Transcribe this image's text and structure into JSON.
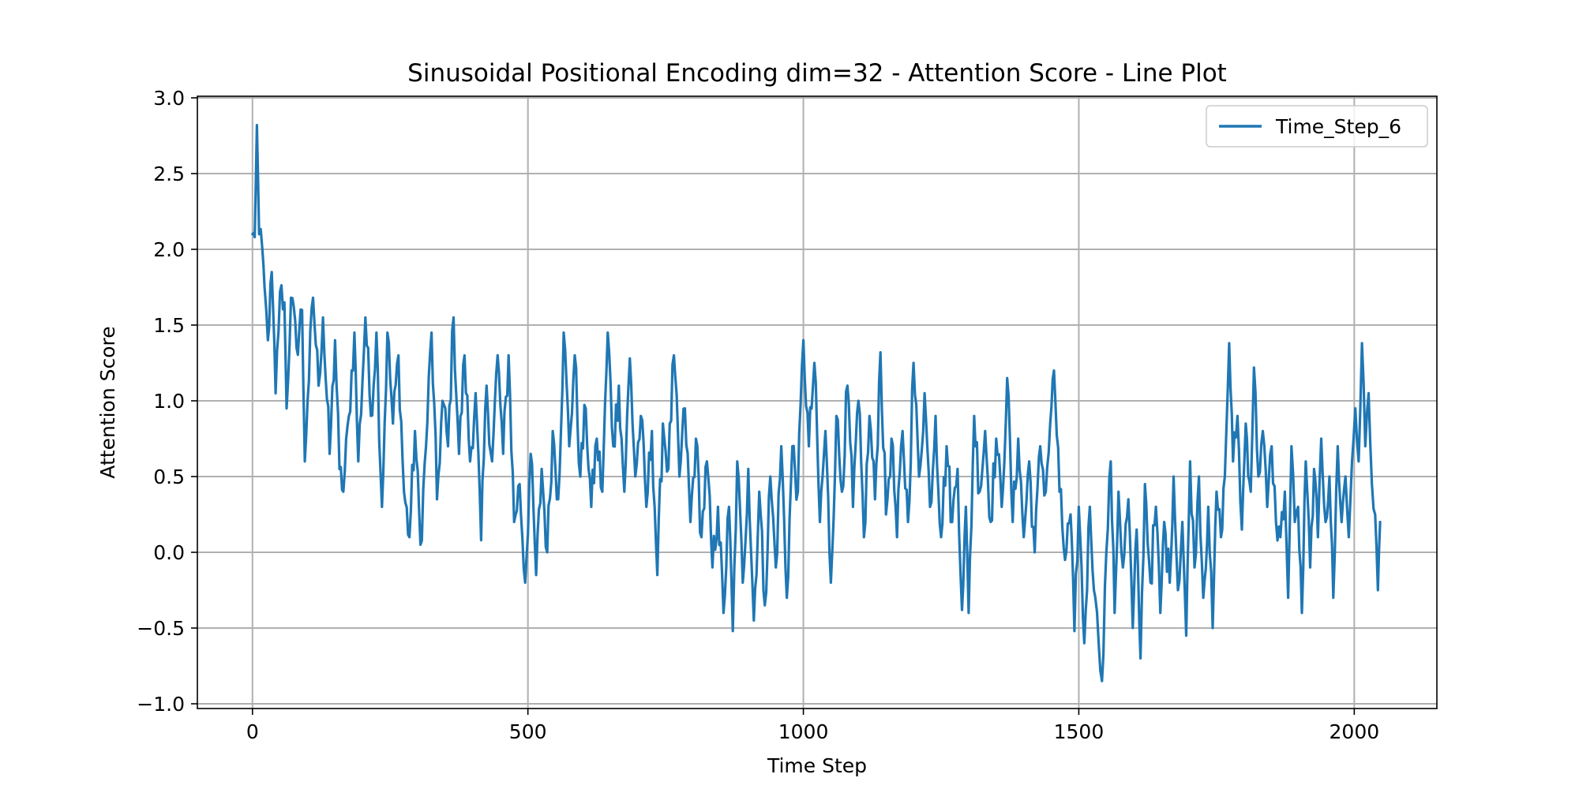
{
  "chart_data": {
    "type": "line",
    "title": "Sinusoidal Positional Encoding dim=32 - Attention Score - Line Plot",
    "xlabel": "Time Step",
    "ylabel": "Attention Score",
    "xlim": [
      -100,
      2150
    ],
    "ylim": [
      -1.0,
      3.0
    ],
    "xticks": [
      0,
      500,
      1000,
      1500,
      2000
    ],
    "xtick_labels": [
      "0",
      "500",
      "1000",
      "1500",
      "2000"
    ],
    "yticks": [
      -1.0,
      -0.5,
      0.0,
      0.5,
      1.0,
      1.5,
      2.0,
      2.5,
      3.0
    ],
    "ytick_labels": [
      "−1.0",
      "−0.5",
      "0.0",
      "0.5",
      "1.0",
      "1.5",
      "2.0",
      "2.5",
      "3.0"
    ],
    "grid": true,
    "legend_position": "top-right",
    "series": [
      {
        "name": "Time_Step_6",
        "color": "#1f77b4",
        "x_start": 0,
        "x_end": 2047,
        "anchors": [
          [
            0,
            2.1
          ],
          [
            4,
            2.08
          ],
          [
            8,
            2.82
          ],
          [
            12,
            2.1
          ],
          [
            18,
            2.0
          ],
          [
            22,
            1.75
          ],
          [
            28,
            1.4
          ],
          [
            35,
            1.85
          ],
          [
            42,
            1.05
          ],
          [
            50,
            1.72
          ],
          [
            58,
            1.65
          ],
          [
            62,
            0.95
          ],
          [
            70,
            1.68
          ],
          [
            80,
            1.35
          ],
          [
            90,
            1.6
          ],
          [
            95,
            0.6
          ],
          [
            100,
            1.0
          ],
          [
            110,
            1.68
          ],
          [
            120,
            1.1
          ],
          [
            128,
            1.55
          ],
          [
            140,
            0.65
          ],
          [
            150,
            1.4
          ],
          [
            158,
            0.55
          ],
          [
            165,
            0.4
          ],
          [
            175,
            0.9
          ],
          [
            185,
            1.45
          ],
          [
            192,
            0.6
          ],
          [
            205,
            1.55
          ],
          [
            215,
            0.9
          ],
          [
            225,
            1.45
          ],
          [
            235,
            0.3
          ],
          [
            245,
            1.45
          ],
          [
            255,
            0.85
          ],
          [
            265,
            1.3
          ],
          [
            275,
            0.4
          ],
          [
            285,
            0.1
          ],
          [
            295,
            0.8
          ],
          [
            305,
            0.05
          ],
          [
            315,
            0.7
          ],
          [
            325,
            1.45
          ],
          [
            335,
            0.35
          ],
          [
            345,
            1.0
          ],
          [
            355,
            0.7
          ],
          [
            365,
            1.55
          ],
          [
            375,
            0.65
          ],
          [
            385,
            1.3
          ],
          [
            395,
            0.6
          ],
          [
            405,
            1.05
          ],
          [
            415,
            0.08
          ],
          [
            425,
            1.1
          ],
          [
            435,
            0.6
          ],
          [
            445,
            1.3
          ],
          [
            455,
            0.65
          ],
          [
            465,
            1.3
          ],
          [
            475,
            0.2
          ],
          [
            485,
            0.45
          ],
          [
            495,
            -0.2
          ],
          [
            505,
            0.65
          ],
          [
            515,
            -0.15
          ],
          [
            525,
            0.55
          ],
          [
            535,
            0.0
          ],
          [
            545,
            0.8
          ],
          [
            555,
            0.35
          ],
          [
            565,
            1.45
          ],
          [
            575,
            0.7
          ],
          [
            585,
            1.3
          ],
          [
            595,
            0.5
          ],
          [
            605,
            0.95
          ],
          [
            615,
            0.3
          ],
          [
            625,
            0.75
          ],
          [
            635,
            0.4
          ],
          [
            645,
            1.45
          ],
          [
            655,
            0.7
          ],
          [
            665,
            1.1
          ],
          [
            675,
            0.4
          ],
          [
            685,
            1.28
          ],
          [
            695,
            0.5
          ],
          [
            705,
            0.9
          ],
          [
            715,
            0.3
          ],
          [
            725,
            0.8
          ],
          [
            735,
            -0.15
          ],
          [
            745,
            0.85
          ],
          [
            755,
            0.55
          ],
          [
            765,
            1.3
          ],
          [
            775,
            0.5
          ],
          [
            785,
            0.95
          ],
          [
            795,
            0.2
          ],
          [
            805,
            0.75
          ],
          [
            815,
            0.1
          ],
          [
            825,
            0.6
          ],
          [
            835,
            -0.1
          ],
          [
            845,
            0.3
          ],
          [
            855,
            -0.4
          ],
          [
            865,
            0.3
          ],
          [
            872,
            -0.52
          ],
          [
            880,
            0.6
          ],
          [
            890,
            -0.2
          ],
          [
            900,
            0.55
          ],
          [
            910,
            -0.45
          ],
          [
            920,
            0.4
          ],
          [
            930,
            -0.35
          ],
          [
            940,
            0.5
          ],
          [
            950,
            -0.1
          ],
          [
            960,
            0.7
          ],
          [
            970,
            -0.3
          ],
          [
            980,
            0.7
          ],
          [
            990,
            0.4
          ],
          [
            1000,
            1.4
          ],
          [
            1010,
            0.7
          ],
          [
            1020,
            1.25
          ],
          [
            1030,
            0.2
          ],
          [
            1040,
            0.8
          ],
          [
            1050,
            -0.2
          ],
          [
            1060,
            0.9
          ],
          [
            1070,
            0.4
          ],
          [
            1080,
            1.1
          ],
          [
            1090,
            0.3
          ],
          [
            1100,
            1.0
          ],
          [
            1110,
            0.1
          ],
          [
            1120,
            0.9
          ],
          [
            1130,
            0.35
          ],
          [
            1140,
            1.32
          ],
          [
            1150,
            0.25
          ],
          [
            1160,
            0.75
          ],
          [
            1170,
            0.1
          ],
          [
            1180,
            0.8
          ],
          [
            1190,
            0.2
          ],
          [
            1200,
            1.25
          ],
          [
            1210,
            0.5
          ],
          [
            1220,
            1.05
          ],
          [
            1230,
            0.3
          ],
          [
            1240,
            0.9
          ],
          [
            1250,
            0.1
          ],
          [
            1260,
            0.7
          ],
          [
            1270,
            0.2
          ],
          [
            1280,
            0.55
          ],
          [
            1288,
            -0.38
          ],
          [
            1295,
            0.3
          ],
          [
            1300,
            -0.4
          ],
          [
            1310,
            0.9
          ],
          [
            1320,
            0.4
          ],
          [
            1330,
            0.8
          ],
          [
            1340,
            0.2
          ],
          [
            1350,
            0.75
          ],
          [
            1360,
            0.3
          ],
          [
            1370,
            1.15
          ],
          [
            1380,
            0.2
          ],
          [
            1390,
            0.75
          ],
          [
            1400,
            0.1
          ],
          [
            1410,
            0.6
          ],
          [
            1420,
            0.0
          ],
          [
            1430,
            0.7
          ],
          [
            1440,
            0.4
          ],
          [
            1448,
            0.85
          ],
          [
            1455,
            1.2
          ],
          [
            1465,
            0.4
          ],
          [
            1475,
            -0.05
          ],
          [
            1485,
            0.25
          ],
          [
            1492,
            -0.52
          ],
          [
            1500,
            0.3
          ],
          [
            1510,
            -0.6
          ],
          [
            1520,
            0.3
          ],
          [
            1530,
            -0.3
          ],
          [
            1536,
            -0.6
          ],
          [
            1542,
            -0.85
          ],
          [
            1550,
            0.0
          ],
          [
            1558,
            0.6
          ],
          [
            1565,
            -0.4
          ],
          [
            1572,
            0.4
          ],
          [
            1580,
            -0.1
          ],
          [
            1590,
            0.35
          ],
          [
            1598,
            -0.5
          ],
          [
            1605,
            0.15
          ],
          [
            1612,
            -0.7
          ],
          [
            1620,
            0.45
          ],
          [
            1630,
            -0.2
          ],
          [
            1640,
            0.3
          ],
          [
            1648,
            -0.4
          ],
          [
            1655,
            0.2
          ],
          [
            1665,
            -0.2
          ],
          [
            1672,
            0.5
          ],
          [
            1680,
            -0.25
          ],
          [
            1688,
            0.2
          ],
          [
            1695,
            -0.55
          ],
          [
            1702,
            0.6
          ],
          [
            1710,
            -0.1
          ],
          [
            1718,
            0.5
          ],
          [
            1726,
            -0.3
          ],
          [
            1735,
            0.3
          ],
          [
            1743,
            -0.5
          ],
          [
            1750,
            0.4
          ],
          [
            1758,
            0.1
          ],
          [
            1765,
            0.5
          ],
          [
            1773,
            1.38
          ],
          [
            1780,
            0.6
          ],
          [
            1788,
            0.9
          ],
          [
            1796,
            0.15
          ],
          [
            1803,
            0.85
          ],
          [
            1812,
            0.4
          ],
          [
            1818,
            1.22
          ],
          [
            1826,
            0.5
          ],
          [
            1834,
            0.8
          ],
          [
            1842,
            0.3
          ],
          [
            1850,
            0.7
          ],
          [
            1858,
            0.2
          ],
          [
            1866,
            0.1
          ],
          [
            1874,
            0.4
          ],
          [
            1880,
            -0.3
          ],
          [
            1886,
            0.7
          ],
          [
            1892,
            0.2
          ],
          [
            1898,
            0.3
          ],
          [
            1905,
            -0.4
          ],
          [
            1912,
            0.6
          ],
          [
            1920,
            -0.1
          ],
          [
            1927,
            0.55
          ],
          [
            1934,
            0.1
          ],
          [
            1940,
            0.75
          ],
          [
            1948,
            0.2
          ],
          [
            1955,
            0.5
          ],
          [
            1962,
            -0.3
          ],
          [
            1970,
            0.7
          ],
          [
            1977,
            0.2
          ],
          [
            1984,
            0.5
          ],
          [
            1990,
            0.1
          ],
          [
            1996,
            0.6
          ],
          [
            2002,
            0.95
          ],
          [
            2008,
            0.6
          ],
          [
            2014,
            1.38
          ],
          [
            2020,
            0.7
          ],
          [
            2026,
            1.05
          ],
          [
            2032,
            0.45
          ],
          [
            2038,
            0.25
          ],
          [
            2043,
            -0.25
          ],
          [
            2047,
            0.2
          ]
        ]
      }
    ]
  }
}
